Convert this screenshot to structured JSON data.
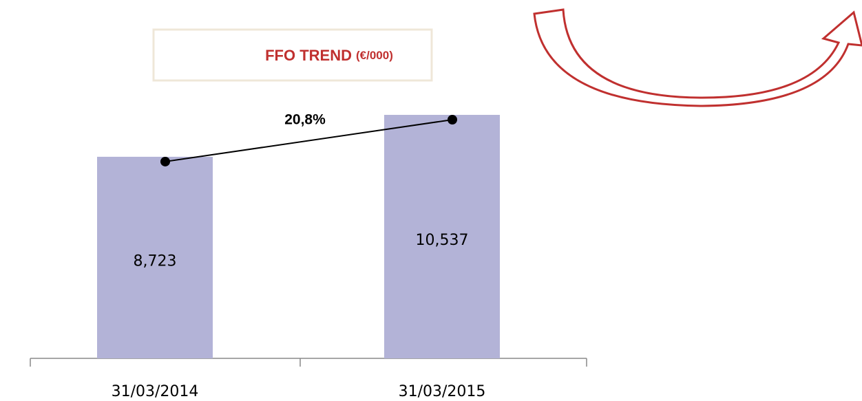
{
  "chart_data": {
    "type": "bar",
    "title": "FFO TREND",
    "title_unit": "(€/000)",
    "categories": [
      "31/03/2014",
      "31/03/2015"
    ],
    "values": [
      8723,
      10537
    ],
    "value_labels": [
      "8,723",
      "10,537"
    ],
    "color": "#b3b3d7",
    "line_color": "#000000",
    "annotation": "20,8%"
  }
}
